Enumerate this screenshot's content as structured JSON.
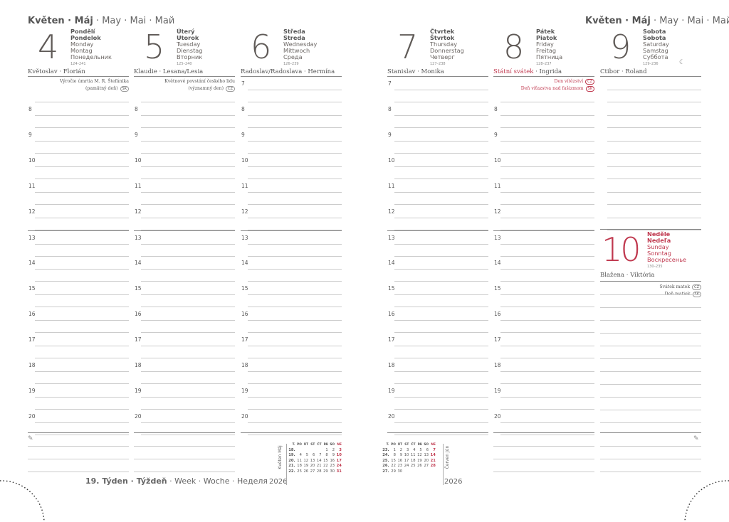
{
  "month": {
    "bold": "Květen · Máj",
    "rest": " · May · Mai · Май"
  },
  "days": [
    {
      "num": "4",
      "names": [
        "Pondělí",
        "Pondelok",
        "Monday",
        "Montag",
        "Понедельник"
      ],
      "daynum": "124–241",
      "nameday": "Květoslav · Florián",
      "notes": [
        {
          "text": "Výročie úmrtia M. R. Štefánika",
          "tag": ""
        },
        {
          "text": "(pamätný deň)",
          "tag": "SK"
        }
      ]
    },
    {
      "num": "5",
      "names": [
        "Úterý",
        "Utorok",
        "Tuesday",
        "Dienstag",
        "Вторник"
      ],
      "daynum": "125–240",
      "nameday": "Klaudie · Lesana/Lesia",
      "notes": [
        {
          "text": "Květnové povstání českého lidu",
          "tag": ""
        },
        {
          "text": "(významný den)",
          "tag": "CZ"
        }
      ]
    },
    {
      "num": "6",
      "names": [
        "Středa",
        "Streda",
        "Wednesday",
        "Mittwoch",
        "Среда"
      ],
      "daynum": "126–239",
      "nameday": "Radoslav/Radoslava · Hermína",
      "notes": []
    },
    {
      "num": "7",
      "names": [
        "Čtvrtek",
        "Štvrtok",
        "Thursday",
        "Donnerstag",
        "Четверг"
      ],
      "daynum": "127–238",
      "nameday": "Stanislav · Monika",
      "notes": []
    },
    {
      "num": "8",
      "names": [
        "Pátek",
        "Piatok",
        "Friday",
        "Freitag",
        "Пятница"
      ],
      "daynum": "128–237",
      "nameday_red": "Státní svátek",
      "nameday": " · Ingrida",
      "notes": [
        {
          "text": "Den vítězství",
          "tag": "CZ"
        },
        {
          "text": "Deň víťazstva nad fašizmom",
          "tag": "SK"
        }
      ]
    },
    {
      "num": "9",
      "names": [
        "Sobota",
        "Sobota",
        "Saturday",
        "Samstag",
        "Суббота"
      ],
      "daynum": "129–236",
      "nameday": "Ctibor · Roland",
      "notes": []
    }
  ],
  "sunday": {
    "num": "10",
    "names": [
      "Neděle",
      "Nedeľa",
      "Sunday",
      "Sonntag",
      "Воскресенье"
    ],
    "daynum": "130–235",
    "nameday": "Blažena · Viktória",
    "notes": [
      {
        "text": "Svátek matek",
        "tag": "CZ"
      },
      {
        "text": "Deň matiek",
        "tag": "SK"
      }
    ]
  },
  "hours": [
    "7",
    "8",
    "9",
    "10",
    "11",
    "12",
    "13",
    "14",
    "15",
    "16",
    "17",
    "18",
    "19",
    "20"
  ],
  "moon_icon": "☾",
  "week_label": {
    "bold": "19. Týden · Týždeň",
    "rest": " · Week · Woche · Неделя"
  },
  "mini_may": {
    "vlabel": "Květen Máj",
    "year": "2026",
    "head": [
      "T.",
      "PO",
      "ÚT",
      "ST",
      "ČT",
      "PÁ",
      "SO",
      "NE"
    ],
    "rows": [
      [
        "18.",
        "",
        "",
        "",
        "",
        "1",
        "2",
        "3"
      ],
      [
        "19.",
        "4",
        "5",
        "6",
        "7",
        "8",
        "9",
        "10"
      ],
      [
        "20.",
        "11",
        "12",
        "13",
        "14",
        "15",
        "16",
        "17"
      ],
      [
        "21.",
        "18",
        "19",
        "20",
        "21",
        "22",
        "23",
        "24"
      ],
      [
        "22.",
        "25",
        "26",
        "27",
        "28",
        "29",
        "30",
        "31"
      ]
    ]
  },
  "mini_june": {
    "vlabel": "Červen Jún",
    "year": "2026",
    "head": [
      "T.",
      "PO",
      "ÚT",
      "ST",
      "ČT",
      "PÁ",
      "SO",
      "NE"
    ],
    "rows": [
      [
        "23.",
        "1",
        "2",
        "3",
        "4",
        "5",
        "6",
        "7"
      ],
      [
        "24.",
        "8",
        "9",
        "10",
        "11",
        "12",
        "13",
        "14"
      ],
      [
        "25.",
        "15",
        "16",
        "17",
        "18",
        "19",
        "20",
        "21"
      ],
      [
        "26.",
        "22",
        "23",
        "24",
        "25",
        "26",
        "27",
        "28"
      ],
      [
        "27.",
        "29",
        "30",
        "",
        "",
        "",
        "",
        ""
      ]
    ]
  },
  "colors": {
    "accent": "#c0394f",
    "text": "#6b6663"
  }
}
